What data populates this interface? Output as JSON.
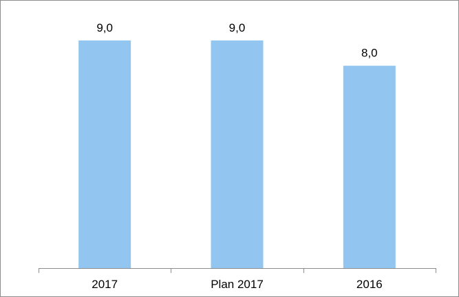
{
  "chart_data": {
    "type": "bar",
    "title": "",
    "xlabel": "",
    "ylabel": "",
    "categories": [
      "2017",
      "Plan 2017",
      "2016"
    ],
    "values": [
      9.0,
      9.0,
      8.0
    ],
    "value_labels": [
      "9,0",
      "9,0",
      "8,0"
    ],
    "ylim": [
      0,
      10
    ],
    "grid": false,
    "legend": "none",
    "bar_color": "#92C6F0",
    "axis_color": "#8c8c8c"
  }
}
